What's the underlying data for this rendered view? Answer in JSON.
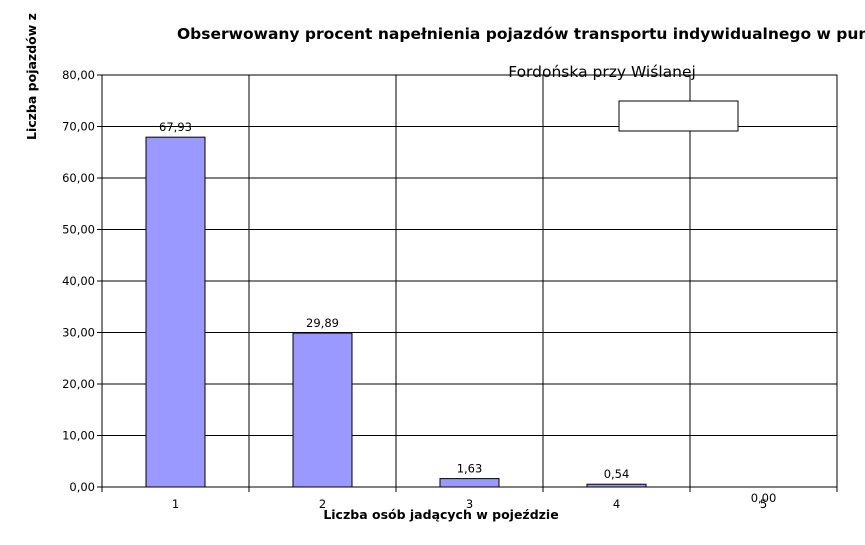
{
  "chart_data": {
    "type": "bar",
    "title": "Obserwowany procent napełnienia pojazdów transportu indywidualnego w punk",
    "subtitle": "Fordońska przy Wiślanej",
    "xlabel": "Liczba osób jadących w pojeździe",
    "ylabel": "Liczba pojazdów z",
    "categories": [
      "1",
      "2",
      "3",
      "4",
      "5"
    ],
    "values": [
      67.93,
      29.89,
      1.63,
      0.54,
      0.0
    ],
    "value_labels": [
      "67,93",
      "29,89",
      "1,63",
      "0,54",
      "0,00"
    ],
    "ylim": [
      0,
      80
    ],
    "yticks": [
      "0,00",
      "10,00",
      "20,00",
      "30,00",
      "40,00",
      "50,00",
      "60,00",
      "70,00",
      "80,00"
    ],
    "grid": true,
    "legend": "top-right",
    "colors": {
      "bar": "#9999ff",
      "bar_stroke": "#000000",
      "grid": "#000000"
    }
  }
}
